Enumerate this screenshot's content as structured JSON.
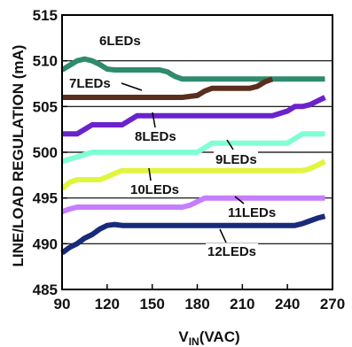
{
  "chart_data": {
    "type": "line",
    "xlabel_main": "V",
    "xlabel_sub": "IN",
    "xlabel_unit": "(VAC)",
    "ylabel": "LINE/LOAD REGULATION (mA)",
    "xlim": [
      90,
      270
    ],
    "ylim": [
      485,
      515
    ],
    "xticks": [
      90,
      120,
      150,
      180,
      210,
      240,
      270
    ],
    "yticks": [
      485,
      490,
      495,
      500,
      505,
      510,
      515
    ],
    "grid": "horizontal",
    "series": [
      {
        "name": "6LEDs",
        "color": "#2e8b6e",
        "x": [
          90,
          95,
          100,
          105,
          110,
          115,
          120,
          125,
          130,
          140,
          150,
          155,
          160,
          165,
          170,
          175,
          180,
          190,
          200,
          210,
          220,
          225,
          230,
          240,
          250,
          260,
          265
        ],
        "y": [
          509,
          509.5,
          510,
          510.2,
          510,
          509.6,
          509.1,
          509,
          509,
          509,
          509,
          509,
          508.8,
          508.3,
          508,
          508,
          508,
          508,
          508,
          508,
          508,
          508,
          508,
          508,
          508,
          508,
          508
        ]
      },
      {
        "name": "7LEDs",
        "color": "#5a2e1e",
        "x": [
          90,
          100,
          110,
          120,
          130,
          140,
          150,
          160,
          170,
          180,
          185,
          190,
          195,
          200,
          210,
          215,
          220,
          225,
          230
        ],
        "y": [
          506,
          506,
          506,
          506,
          506,
          506,
          506,
          506,
          506,
          506.2,
          506.7,
          507,
          507,
          507,
          507,
          507,
          507.2,
          507.7,
          508
        ]
      },
      {
        "name": "8LEDs",
        "color": "#6a22cc",
        "x": [
          90,
          100,
          105,
          110,
          120,
          130,
          135,
          140,
          150,
          160,
          170,
          180,
          190,
          200,
          210,
          220,
          230,
          240,
          245,
          250,
          255,
          260,
          265
        ],
        "y": [
          502,
          502,
          502.5,
          503,
          503,
          503,
          503.5,
          504,
          504,
          504,
          504,
          504,
          504,
          504,
          504,
          504,
          504,
          504.5,
          505,
          505,
          505.2,
          505.6,
          506
        ]
      },
      {
        "name": "9LEDs",
        "color": "#7fffd4",
        "x": [
          90,
          100,
          110,
          120,
          130,
          140,
          150,
          160,
          170,
          180,
          185,
          190,
          200,
          210,
          220,
          230,
          240,
          245,
          250,
          255,
          260,
          265
        ],
        "y": [
          499,
          499.5,
          500,
          500,
          500,
          500,
          500,
          500,
          500,
          500,
          500.5,
          501,
          501,
          501,
          501,
          501,
          501,
          501.5,
          502,
          502,
          502,
          502
        ]
      },
      {
        "name": "10LEDs",
        "color": "#e0f540",
        "x": [
          90,
          95,
          100,
          105,
          110,
          115,
          120,
          125,
          130,
          140,
          150,
          160,
          170,
          180,
          190,
          200,
          210,
          220,
          230,
          240,
          250,
          255,
          260,
          265
        ],
        "y": [
          496,
          496.7,
          497,
          497,
          497,
          497,
          497.3,
          497.7,
          498,
          498,
          498,
          498,
          498,
          498,
          498,
          498,
          498,
          498,
          498,
          498,
          498,
          498.2,
          498.6,
          499
        ]
      },
      {
        "name": "11LEDs",
        "color": "#c77dff",
        "x": [
          90,
          95,
          100,
          105,
          110,
          120,
          130,
          140,
          150,
          160,
          170,
          175,
          180,
          185,
          190,
          200,
          210,
          220,
          230,
          240,
          250,
          260,
          265
        ],
        "y": [
          493.5,
          493.8,
          494,
          494,
          494,
          494,
          494,
          494,
          494,
          494,
          494,
          494.2,
          494.6,
          495,
          495,
          495,
          495,
          495,
          495,
          495,
          495,
          495,
          495
        ]
      },
      {
        "name": "12LEDs",
        "color": "#1a2a7a",
        "x": [
          90,
          95,
          100,
          105,
          110,
          115,
          120,
          125,
          130,
          140,
          150,
          160,
          170,
          180,
          190,
          200,
          210,
          220,
          230,
          240,
          245,
          250,
          255,
          260,
          265
        ],
        "y": [
          489,
          489.6,
          490,
          490.6,
          491,
          491.6,
          492,
          492.1,
          492,
          492,
          492,
          492,
          492,
          492,
          492,
          492,
          492,
          492,
          492,
          492,
          492,
          492.2,
          492.5,
          492.8,
          493
        ]
      }
    ],
    "annotations": [
      {
        "text": "6LEDs",
        "series": 0,
        "leader": false
      },
      {
        "text": "7LEDs",
        "series": 1,
        "leader": true
      },
      {
        "text": "8LEDs",
        "series": 2,
        "leader": true
      },
      {
        "text": "9LEDs",
        "series": 3,
        "leader": true
      },
      {
        "text": "10LEDs",
        "series": 4,
        "leader": true
      },
      {
        "text": "11LEDs",
        "series": 5,
        "leader": true
      },
      {
        "text": "12LEDs",
        "series": 6,
        "leader": true
      }
    ]
  }
}
